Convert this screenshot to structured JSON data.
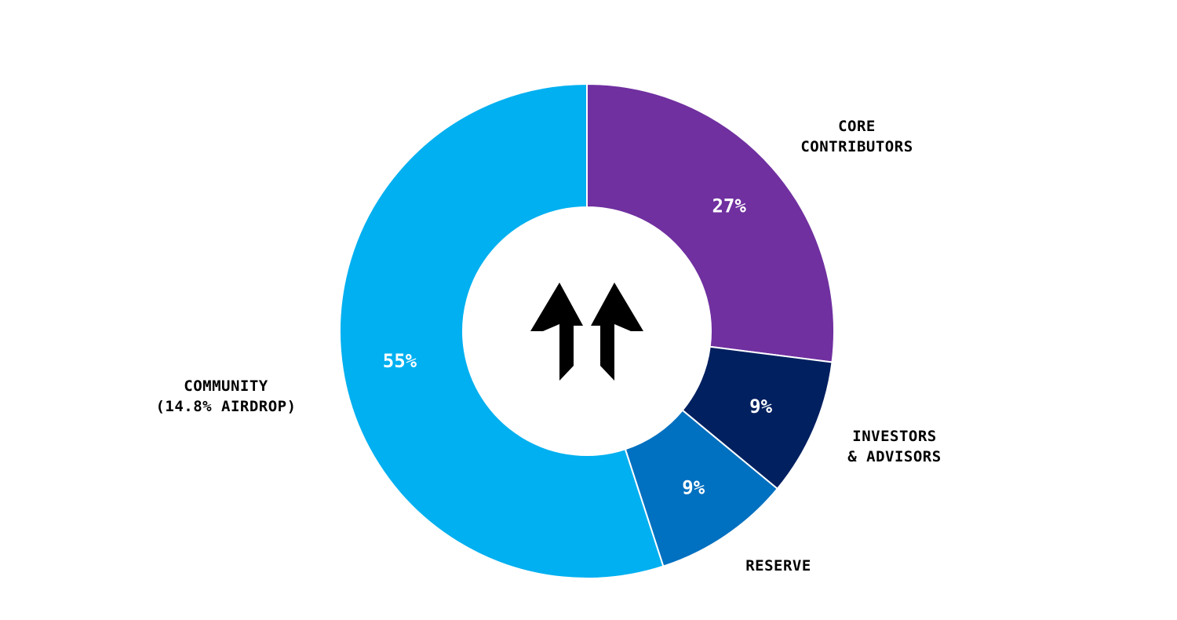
{
  "chart_data": {
    "type": "pie",
    "donut": true,
    "slices": [
      {
        "label_lines": [
          "CORE",
          "CONTRIBUTORS"
        ],
        "value": 27,
        "value_label": "27%",
        "color": "#7030A0"
      },
      {
        "label_lines": [
          "INVESTORS",
          "& ADVISORS"
        ],
        "value": 9,
        "value_label": "9%",
        "color": "#002060"
      },
      {
        "label_lines": [
          "RESERVE"
        ],
        "value": 9,
        "value_label": "9%",
        "color": "#0070C0"
      },
      {
        "label_lines": [
          "COMMUNITY",
          "(14.8% AIRDROP)"
        ],
        "value": 55,
        "value_label": "55%",
        "color": "#00B0F0"
      }
    ],
    "legend": "none",
    "start_angle": "top, clockwise"
  },
  "center_logo": {
    "icon": "double-arrow-up-logo",
    "color": "#000000"
  }
}
